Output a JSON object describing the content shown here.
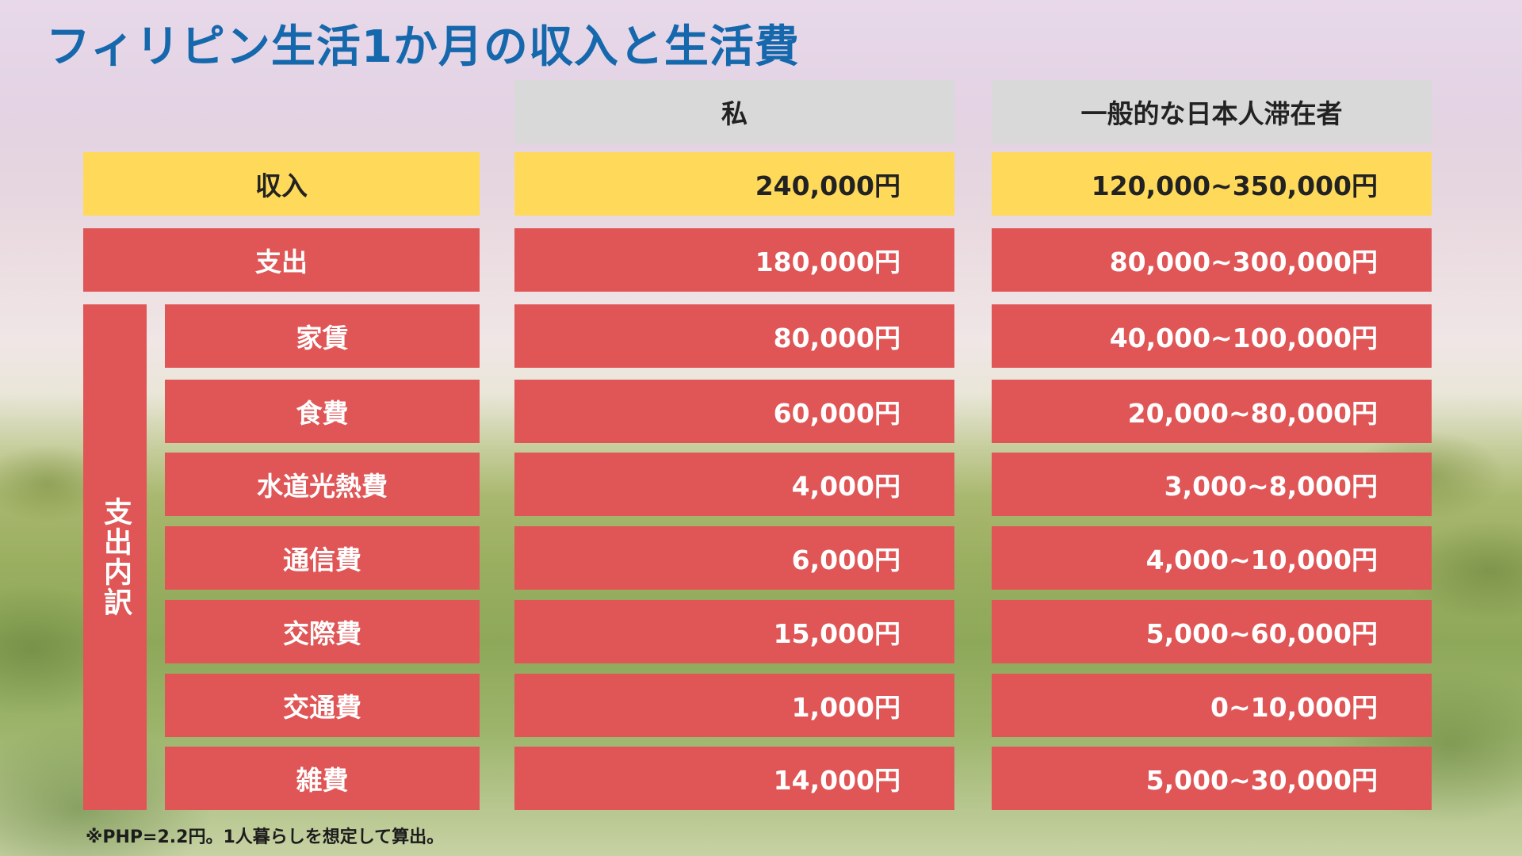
{
  "title": "フィリピン生活1か月の収入と生活費",
  "headers": {
    "me": "私",
    "general": "一般的な日本人滞在者"
  },
  "income": {
    "label": "収入",
    "me": "240,000円",
    "general": "120,000~350,000円"
  },
  "expense": {
    "label": "支出",
    "me": "180,000円",
    "general": "80,000~300,000円"
  },
  "breakdown_label": "支出内訳",
  "rows": [
    {
      "label": "家賃",
      "me": "80,000円",
      "general": "40,000~100,000円"
    },
    {
      "label": "食費",
      "me": "60,000円",
      "general": "20,000~80,000円"
    },
    {
      "label": "水道光熱費",
      "me": "4,000円",
      "general": "3,000~8,000円"
    },
    {
      "label": "通信費",
      "me": "6,000円",
      "general": "4,000~10,000円"
    },
    {
      "label": "交際費",
      "me": "15,000円",
      "general": "5,000~60,000円"
    },
    {
      "label": "交通費",
      "me": "1,000円",
      "general": "0~10,000円"
    },
    {
      "label": "雑費",
      "me": "14,000円",
      "general": "5,000~30,000円"
    }
  ],
  "note": "※PHP=2.2円。1人暮らしを想定して算出。",
  "colors": {
    "title": "#1668ad",
    "header": "#d9d9d9",
    "income": "#ffd95a",
    "expense": "#e05555"
  }
}
